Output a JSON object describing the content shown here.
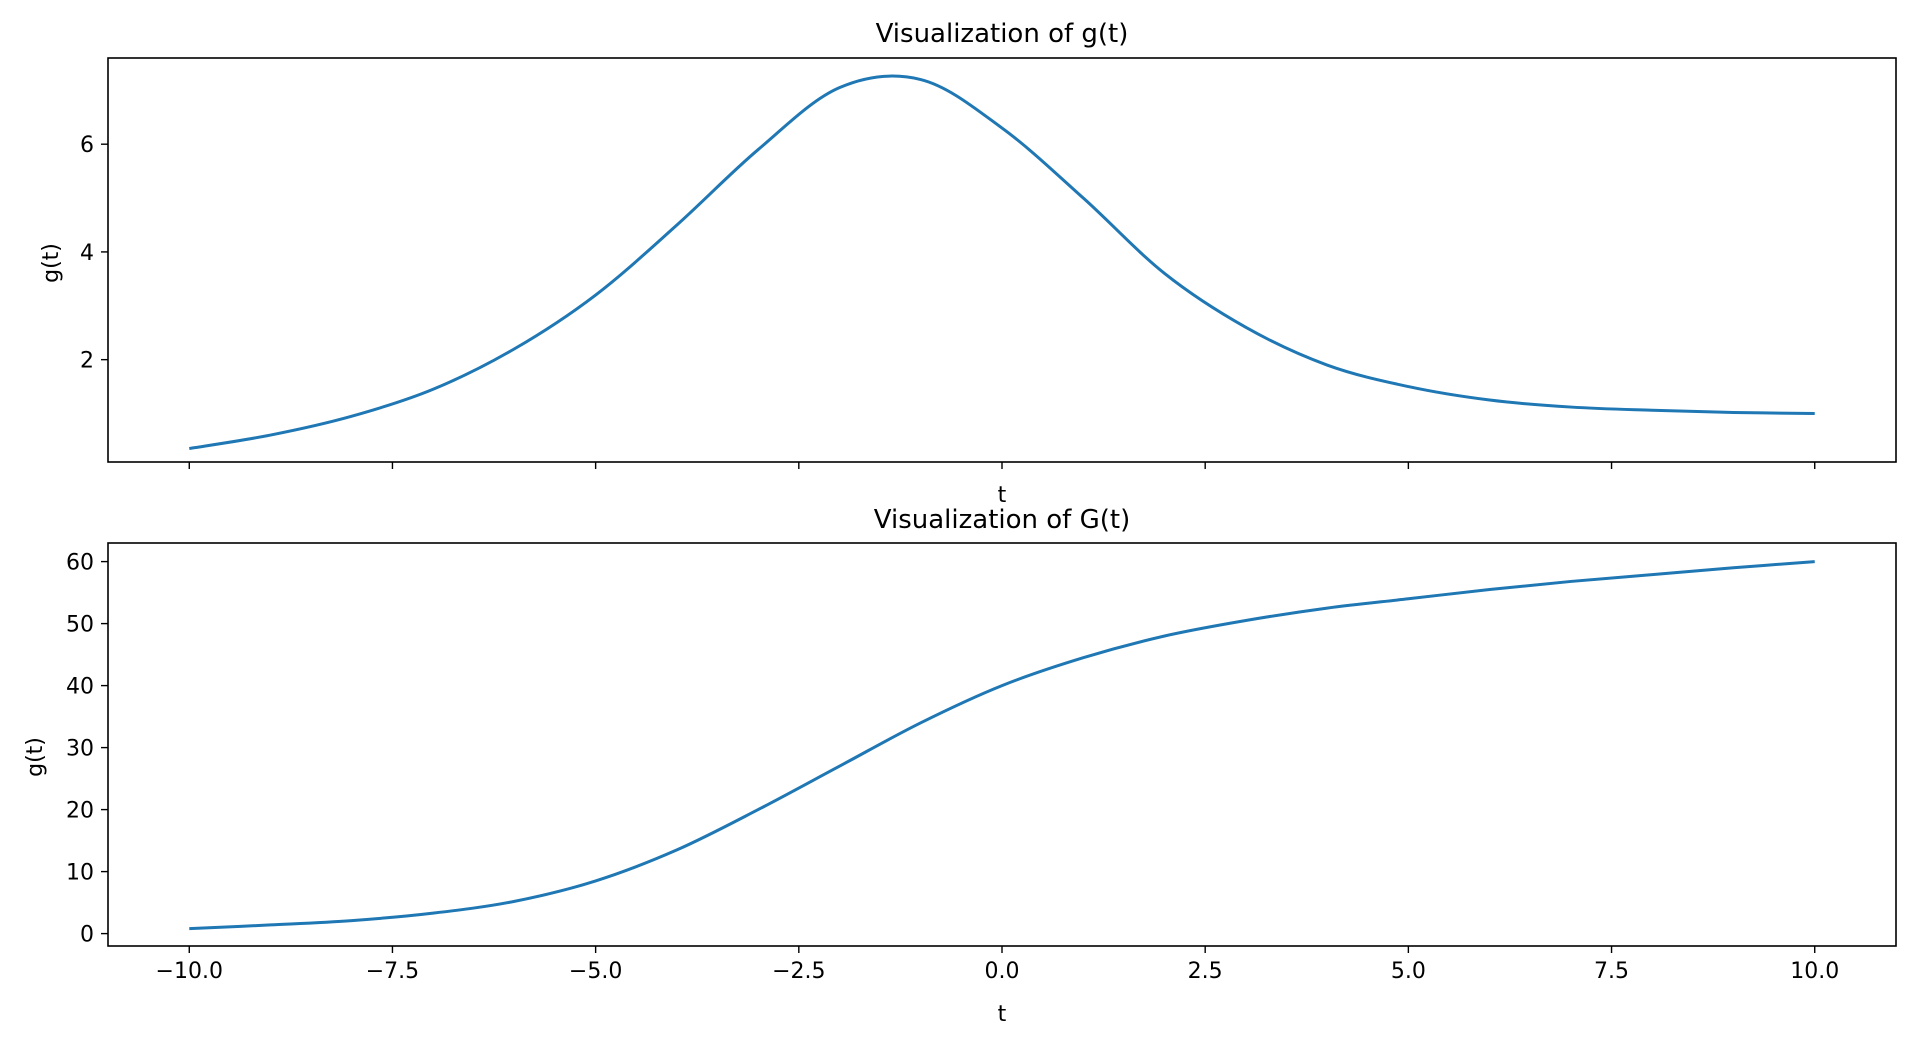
{
  "colors": {
    "line": "#1f77b4",
    "axes": "#000000",
    "background": "#ffffff"
  },
  "chart_data": [
    {
      "type": "line",
      "title": "Visualization of g(t)",
      "xlabel": "t",
      "ylabel": "g(t)",
      "xlim": [
        -11,
        11
      ],
      "ylim": [
        0.1,
        7.6
      ],
      "xticks": [
        -10.0,
        -7.5,
        -5.0,
        -2.5,
        0.0,
        2.5,
        5.0,
        7.5,
        10.0
      ],
      "xtick_labels_visible": false,
      "yticks": [
        2,
        4,
        6
      ],
      "ytick_labels": [
        "2",
        "4",
        "6"
      ],
      "grid": false,
      "series": [
        {
          "x": [
            -10,
            -9,
            -8,
            -7,
            -6,
            -5,
            -4,
            -3,
            -2,
            -1,
            0,
            1,
            2,
            3,
            4,
            5,
            6,
            7,
            8,
            9,
            10
          ],
          "y": [
            0.35,
            0.6,
            0.95,
            1.45,
            2.2,
            3.2,
            4.5,
            5.9,
            7.05,
            7.2,
            6.3,
            5.0,
            3.6,
            2.6,
            1.9,
            1.5,
            1.25,
            1.12,
            1.06,
            1.02,
            1.0
          ]
        }
      ]
    },
    {
      "type": "line",
      "title": "Visualization of G(t)",
      "xlabel": "t",
      "ylabel": "g(t)",
      "xlim": [
        -11,
        11
      ],
      "ylim": [
        -2,
        63
      ],
      "xticks": [
        -10.0,
        -7.5,
        -5.0,
        -2.5,
        0.0,
        2.5,
        5.0,
        7.5,
        10.0
      ],
      "xtick_labels": [
        "−10.0",
        "−7.5",
        "−5.0",
        "−2.5",
        "0.0",
        "2.5",
        "5.0",
        "7.5",
        "10.0"
      ],
      "yticks": [
        0,
        10,
        20,
        30,
        40,
        50,
        60
      ],
      "ytick_labels": [
        "0",
        "10",
        "20",
        "30",
        "40",
        "50",
        "60"
      ],
      "grid": false,
      "series": [
        {
          "x": [
            -10,
            -9,
            -8,
            -7,
            -6,
            -5,
            -4,
            -3,
            -2,
            -1,
            0,
            1,
            2,
            3,
            4,
            5,
            6,
            7,
            8,
            9,
            10
          ],
          "y": [
            0.8,
            1.4,
            2.1,
            3.3,
            5.2,
            8.5,
            13.5,
            20.0,
            27.0,
            34.0,
            40.0,
            44.5,
            48.0,
            50.5,
            52.5,
            54.0,
            55.5,
            56.8,
            57.9,
            59.0,
            60.0
          ]
        }
      ]
    }
  ]
}
